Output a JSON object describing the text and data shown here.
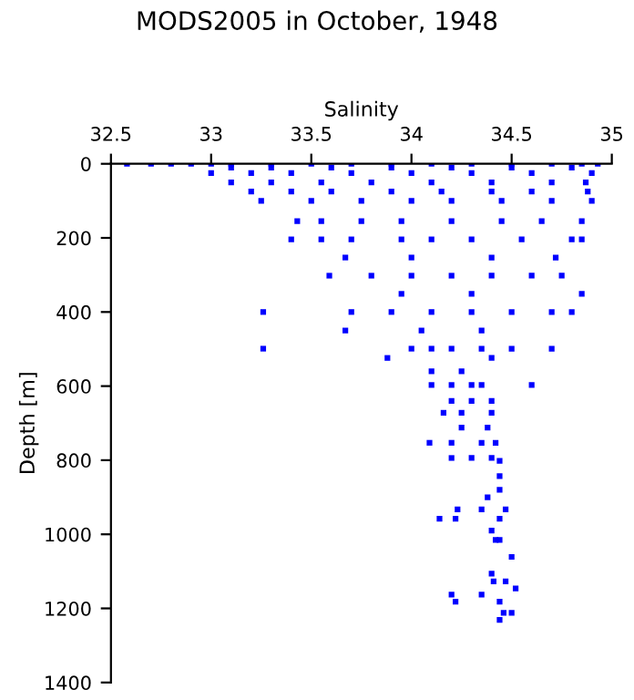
{
  "chart_data": {
    "type": "scatter",
    "title": "MODS2005 in October, 1948",
    "xlabel": "Salinity",
    "ylabel": "Depth [m]",
    "xlim": [
      32.5,
      35
    ],
    "xticks": [
      32.5,
      33,
      33.5,
      34,
      34.5,
      35
    ],
    "ylim": [
      1400,
      0
    ],
    "yticks": [
      0,
      200,
      400,
      600,
      800,
      1000,
      1200,
      1400
    ],
    "grid": false,
    "marker": "square",
    "series": [
      {
        "color": "#0000ff",
        "x": [
          32.58,
          32.7,
          32.8,
          32.9,
          33.0,
          33.1,
          33.3,
          33.5,
          33.7,
          33.9,
          34.1,
          34.3,
          34.5,
          34.7,
          34.85,
          34.93,
          33.1,
          33.3,
          33.6,
          33.9,
          34.2,
          34.5,
          34.8,
          33.0,
          33.2,
          33.4,
          33.7,
          34.0,
          34.3,
          34.6,
          34.9,
          33.1,
          33.3,
          33.55,
          33.8,
          34.1,
          34.4,
          34.7,
          34.87,
          33.2,
          33.4,
          33.6,
          33.9,
          34.15,
          34.4,
          34.6,
          34.88,
          33.25,
          33.5,
          33.75,
          34.0,
          34.2,
          34.45,
          34.7,
          34.9,
          33.43,
          33.55,
          33.75,
          33.95,
          34.2,
          34.45,
          34.65,
          34.85,
          33.4,
          33.55,
          33.7,
          33.95,
          34.1,
          34.3,
          34.55,
          34.8,
          34.85,
          33.67,
          34.0,
          34.4,
          34.72,
          33.59,
          33.8,
          34.0,
          34.2,
          34.4,
          34.6,
          34.75,
          33.95,
          34.3,
          34.85,
          33.26,
          33.7,
          33.9,
          34.1,
          34.3,
          34.5,
          34.7,
          34.8,
          33.67,
          34.05,
          34.35,
          33.26,
          34.0,
          34.1,
          34.2,
          34.35,
          34.5,
          34.7,
          33.88,
          34.4,
          34.1,
          34.25,
          34.1,
          34.2,
          34.3,
          34.35,
          34.6,
          34.2,
          34.3,
          34.4,
          34.16,
          34.25,
          34.4,
          34.25,
          34.38,
          34.09,
          34.2,
          34.35,
          34.42,
          34.2,
          34.3,
          34.4,
          34.44,
          34.44,
          34.44,
          34.38,
          34.23,
          34.35,
          34.47,
          34.14,
          34.22,
          34.44,
          34.4,
          34.42,
          34.44,
          34.5,
          34.4,
          34.41,
          34.47,
          34.52,
          34.2,
          34.35,
          34.22,
          34.44,
          34.46,
          34.5,
          34.44
        ],
        "values": [
          0,
          0,
          0,
          0,
          0,
          0,
          0,
          0,
          0,
          0,
          0,
          0,
          0,
          0,
          0,
          0,
          10,
          10,
          10,
          10,
          10,
          10,
          10,
          25,
          25,
          25,
          25,
          25,
          25,
          25,
          25,
          50,
          50,
          50,
          50,
          50,
          50,
          50,
          50,
          75,
          75,
          75,
          75,
          75,
          75,
          75,
          75,
          100,
          100,
          100,
          100,
          100,
          100,
          100,
          100,
          155,
          155,
          155,
          155,
          155,
          155,
          155,
          155,
          204,
          204,
          204,
          204,
          204,
          204,
          204,
          204,
          204,
          253,
          253,
          253,
          253,
          302,
          302,
          302,
          302,
          302,
          302,
          302,
          351,
          351,
          351,
          400,
          400,
          400,
          400,
          400,
          400,
          400,
          400,
          450,
          450,
          450,
          499,
          499,
          499,
          499,
          499,
          499,
          499,
          524,
          524,
          560,
          560,
          597,
          597,
          597,
          597,
          597,
          640,
          640,
          640,
          672,
          672,
          672,
          712,
          712,
          753,
          753,
          753,
          753,
          794,
          794,
          794,
          802,
          843,
          880,
          900,
          933,
          933,
          933,
          958,
          958,
          958,
          990,
          1015,
          1015,
          1061,
          1106,
          1127,
          1127,
          1146,
          1163,
          1163,
          1182,
          1182,
          1212,
          1212,
          1231
        ]
      }
    ]
  }
}
